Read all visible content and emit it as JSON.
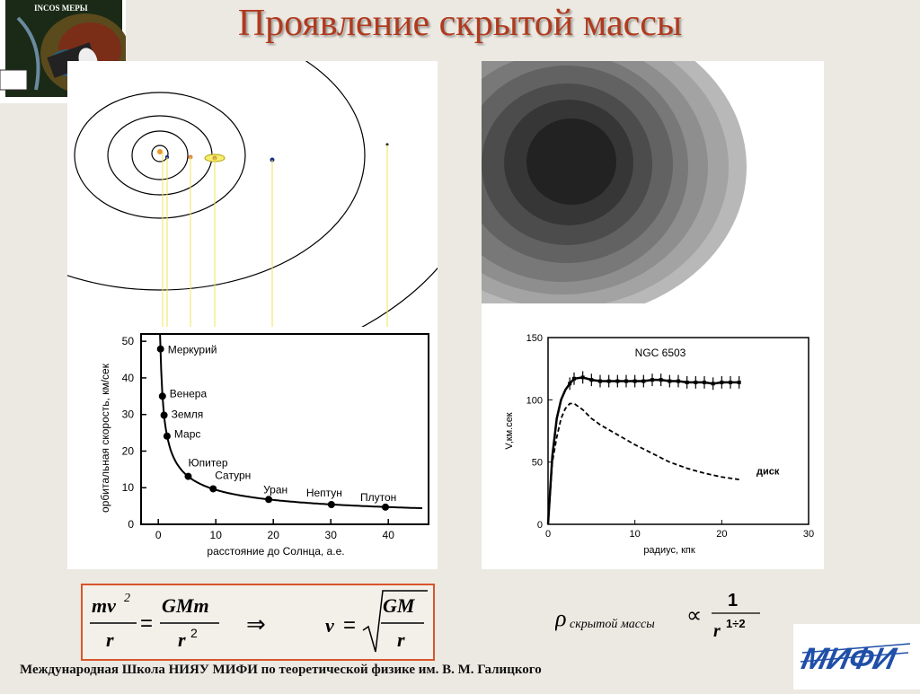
{
  "title": "Проявление скрытой массы",
  "logo": {
    "text": "INCOS MEPЫ"
  },
  "footer": "Международная Школа НИЯУ МИФИ по теоретической физике им. В. М. Галицкого",
  "mifi_logo": {
    "text": "МИФИ"
  },
  "formula": {
    "lhs_num": "mv",
    "lhs_sup": "2",
    "lhs_den": "r",
    "rhs_num": "GMm",
    "rhs_den": "r",
    "rhs_sup": "2",
    "implies": "⇒",
    "v": "v",
    "sqrt_num": "GM",
    "sqrt_den": "r"
  },
  "density_formula": {
    "rho": "ρ",
    "subscript": "скрытой массы",
    "prop": "∝",
    "num": "1",
    "den": "r",
    "den_sup": "1÷2"
  },
  "chart_data": [
    {
      "type": "scatter",
      "xlabel": "расстояние до Солнца, а.е.",
      "ylabel": "орбитальная скорость, км/сек",
      "xlim": [
        -3,
        47
      ],
      "ylim": [
        0,
        52
      ],
      "xticks": [
        0,
        10,
        20,
        30,
        40
      ],
      "yticks": [
        0,
        10,
        20,
        30,
        40,
        50
      ],
      "series": [
        {
          "points": [
            {
              "x": 0.39,
              "y": 47.9,
              "label": "Меркурий"
            },
            {
              "x": 0.72,
              "y": 35.0,
              "label": "Венера"
            },
            {
              "x": 1.0,
              "y": 29.8,
              "label": "Земля"
            },
            {
              "x": 1.52,
              "y": 24.1,
              "label": "Марс"
            },
            {
              "x": 5.2,
              "y": 13.1,
              "label": "Юпитер"
            },
            {
              "x": 9.54,
              "y": 9.7,
              "label": "Сатурн"
            },
            {
              "x": 19.2,
              "y": 6.8,
              "label": "Уран"
            },
            {
              "x": 30.1,
              "y": 5.4,
              "label": "Нептун"
            },
            {
              "x": 39.5,
              "y": 4.7,
              "label": "Плутон"
            }
          ]
        }
      ]
    },
    {
      "type": "line",
      "title": "NGC 6503",
      "xlabel": "радиус, кпк",
      "ylabel": "V,км.сек",
      "xlim": [
        0,
        30
      ],
      "ylim": [
        0,
        150
      ],
      "xticks": [
        0,
        10,
        20,
        30
      ],
      "yticks": [
        0,
        50,
        100,
        150
      ],
      "series": [
        {
          "style": "solid",
          "x": [
            0,
            0.5,
            1,
            1.5,
            2,
            2.5,
            3,
            4,
            5,
            6,
            7,
            8,
            9,
            10,
            11,
            12,
            13,
            14,
            15,
            16,
            17,
            18,
            19,
            20,
            21,
            22
          ],
          "y": [
            0,
            55,
            85,
            100,
            108,
            113,
            117,
            118,
            116,
            115,
            115,
            115,
            115,
            115,
            115,
            116,
            116,
            115,
            115,
            114,
            114,
            114,
            113,
            114,
            114,
            114
          ]
        },
        {
          "name": "диск",
          "style": "dashed",
          "x": [
            0,
            0.5,
            1,
            1.5,
            2,
            2.5,
            3,
            4,
            5,
            6,
            8,
            10,
            12,
            14,
            16,
            18,
            20,
            22
          ],
          "y": [
            0,
            50,
            70,
            85,
            93,
            97,
            97,
            92,
            85,
            80,
            72,
            64,
            57,
            50,
            45,
            41,
            38,
            36
          ]
        }
      ]
    }
  ]
}
